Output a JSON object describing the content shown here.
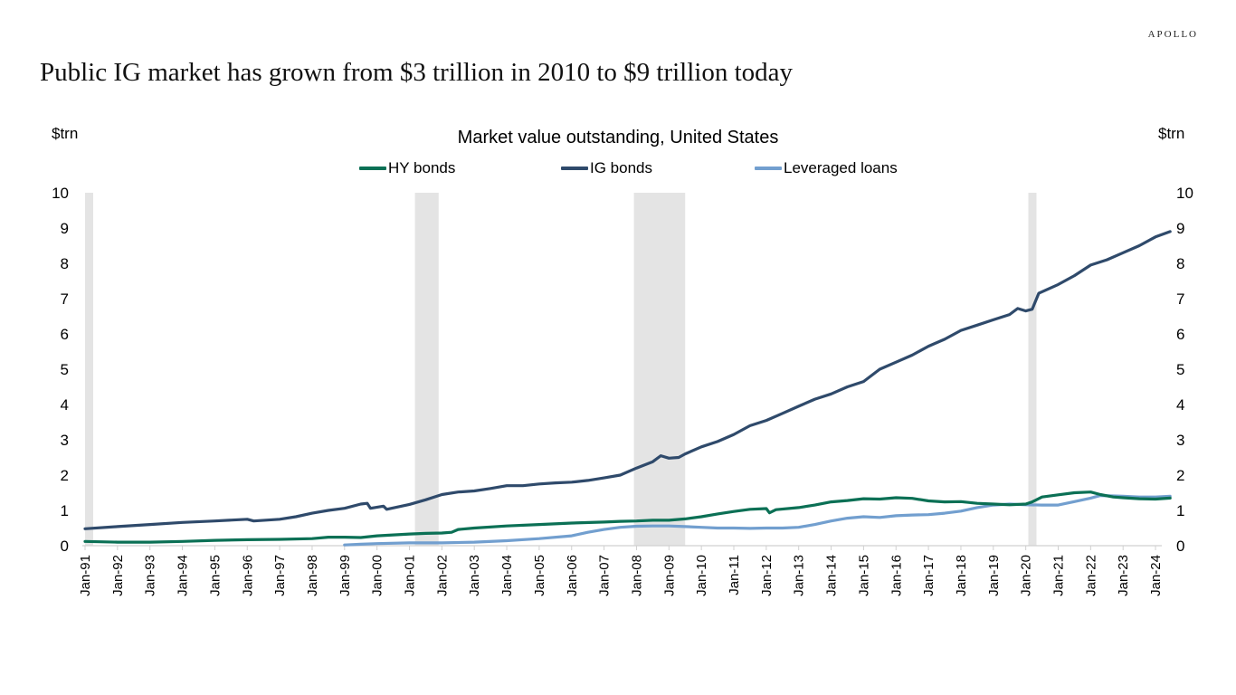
{
  "brand": "APOLLO",
  "headline": "Public IG market has grown from $3 trillion in 2010 to $9 trillion today",
  "chart_data": {
    "type": "line",
    "title": "Market value outstanding, United States",
    "ylabel_left": "$trn",
    "ylabel_right": "$trn",
    "xlabel": "",
    "ylim": [
      0,
      10
    ],
    "yticks": [
      0,
      1,
      2,
      3,
      4,
      5,
      6,
      7,
      8,
      9,
      10
    ],
    "xlim": [
      1991.0,
      2024.45
    ],
    "xticks": [
      {
        "label": "Jan-91",
        "x": 1991
      },
      {
        "label": "Jan-92",
        "x": 1992
      },
      {
        "label": "Jan-93",
        "x": 1993
      },
      {
        "label": "Jan-94",
        "x": 1994
      },
      {
        "label": "Jan-95",
        "x": 1995
      },
      {
        "label": "Jan-96",
        "x": 1996
      },
      {
        "label": "Jan-97",
        "x": 1997
      },
      {
        "label": "Jan-98",
        "x": 1998
      },
      {
        "label": "Jan-99",
        "x": 1999
      },
      {
        "label": "Jan-00",
        "x": 2000
      },
      {
        "label": "Jan-01",
        "x": 2001
      },
      {
        "label": "Jan-02",
        "x": 2002
      },
      {
        "label": "Jan-03",
        "x": 2003
      },
      {
        "label": "Jan-04",
        "x": 2004
      },
      {
        "label": "Jan-05",
        "x": 2005
      },
      {
        "label": "Jan-06",
        "x": 2006
      },
      {
        "label": "Jan-07",
        "x": 2007
      },
      {
        "label": "Jan-08",
        "x": 2008
      },
      {
        "label": "Jan-09",
        "x": 2009
      },
      {
        "label": "Jan-10",
        "x": 2010
      },
      {
        "label": "Jan-11",
        "x": 2011
      },
      {
        "label": "Jan-12",
        "x": 2012
      },
      {
        "label": "Jan-13",
        "x": 2013
      },
      {
        "label": "Jan-14",
        "x": 2014
      },
      {
        "label": "Jan-15",
        "x": 2015
      },
      {
        "label": "Jan-16",
        "x": 2016
      },
      {
        "label": "Jan-17",
        "x": 2017
      },
      {
        "label": "Jan-18",
        "x": 2018
      },
      {
        "label": "Jan-19",
        "x": 2019
      },
      {
        "label": "Jan-20",
        "x": 2020
      },
      {
        "label": "Jan-21",
        "x": 2021
      },
      {
        "label": "Jan-22",
        "x": 2022
      },
      {
        "label": "Jan-23",
        "x": 2023
      },
      {
        "label": "Jan-24",
        "x": 2024
      }
    ],
    "grid": false,
    "legend_position": "top-center",
    "recessions": [
      {
        "start": 1991.0,
        "end": 1991.25
      },
      {
        "start": 2001.17,
        "end": 2001.9
      },
      {
        "start": 2007.92,
        "end": 2009.5
      },
      {
        "start": 2020.08,
        "end": 2020.33
      }
    ],
    "series": [
      {
        "name": "HY bonds",
        "color": "#0b7055",
        "points": [
          [
            1991.0,
            0.12
          ],
          [
            1992.0,
            0.1
          ],
          [
            1993.0,
            0.1
          ],
          [
            1994.0,
            0.12
          ],
          [
            1995.0,
            0.15
          ],
          [
            1996.0,
            0.17
          ],
          [
            1997.0,
            0.18
          ],
          [
            1998.0,
            0.2
          ],
          [
            1998.5,
            0.24
          ],
          [
            1999.0,
            0.24
          ],
          [
            1999.5,
            0.23
          ],
          [
            2000.0,
            0.28
          ],
          [
            2001.0,
            0.33
          ],
          [
            2001.5,
            0.35
          ],
          [
            2002.0,
            0.36
          ],
          [
            2002.3,
            0.38
          ],
          [
            2002.5,
            0.46
          ],
          [
            2003.0,
            0.5
          ],
          [
            2004.0,
            0.56
          ],
          [
            2005.0,
            0.6
          ],
          [
            2006.0,
            0.64
          ],
          [
            2007.0,
            0.67
          ],
          [
            2007.5,
            0.69
          ],
          [
            2008.0,
            0.7
          ],
          [
            2008.5,
            0.72
          ],
          [
            2009.0,
            0.72
          ],
          [
            2009.5,
            0.76
          ],
          [
            2010.0,
            0.82
          ],
          [
            2010.5,
            0.9
          ],
          [
            2011.0,
            0.97
          ],
          [
            2011.5,
            1.03
          ],
          [
            2012.0,
            1.05
          ],
          [
            2012.1,
            0.93
          ],
          [
            2012.3,
            1.02
          ],
          [
            2013.0,
            1.08
          ],
          [
            2013.5,
            1.15
          ],
          [
            2014.0,
            1.24
          ],
          [
            2014.5,
            1.28
          ],
          [
            2015.0,
            1.33
          ],
          [
            2015.5,
            1.32
          ],
          [
            2016.0,
            1.36
          ],
          [
            2016.5,
            1.34
          ],
          [
            2017.0,
            1.27
          ],
          [
            2017.5,
            1.24
          ],
          [
            2018.0,
            1.25
          ],
          [
            2018.5,
            1.2
          ],
          [
            2019.0,
            1.18
          ],
          [
            2019.5,
            1.16
          ],
          [
            2020.0,
            1.18
          ],
          [
            2020.2,
            1.24
          ],
          [
            2020.5,
            1.38
          ],
          [
            2021.0,
            1.44
          ],
          [
            2021.5,
            1.5
          ],
          [
            2022.0,
            1.52
          ],
          [
            2022.3,
            1.45
          ],
          [
            2022.7,
            1.38
          ],
          [
            2023.0,
            1.36
          ],
          [
            2023.5,
            1.33
          ],
          [
            2024.0,
            1.32
          ],
          [
            2024.45,
            1.35
          ]
        ]
      },
      {
        "name": "IG bonds",
        "color": "#2f4a6b",
        "points": [
          [
            1991.0,
            0.48
          ],
          [
            1992.0,
            0.54
          ],
          [
            1993.0,
            0.6
          ],
          [
            1994.0,
            0.66
          ],
          [
            1995.0,
            0.7
          ],
          [
            1996.0,
            0.75
          ],
          [
            1996.2,
            0.7
          ],
          [
            1997.0,
            0.75
          ],
          [
            1997.5,
            0.82
          ],
          [
            1998.0,
            0.92
          ],
          [
            1998.5,
            1.0
          ],
          [
            1999.0,
            1.06
          ],
          [
            1999.5,
            1.18
          ],
          [
            1999.7,
            1.2
          ],
          [
            1999.8,
            1.06
          ],
          [
            2000.2,
            1.12
          ],
          [
            2000.3,
            1.03
          ],
          [
            2001.0,
            1.17
          ],
          [
            2001.5,
            1.3
          ],
          [
            2002.0,
            1.45
          ],
          [
            2002.5,
            1.52
          ],
          [
            2003.0,
            1.55
          ],
          [
            2003.5,
            1.62
          ],
          [
            2004.0,
            1.7
          ],
          [
            2004.5,
            1.7
          ],
          [
            2005.0,
            1.75
          ],
          [
            2005.5,
            1.78
          ],
          [
            2006.0,
            1.8
          ],
          [
            2006.5,
            1.85
          ],
          [
            2007.0,
            1.92
          ],
          [
            2007.5,
            2.0
          ],
          [
            2008.0,
            2.2
          ],
          [
            2008.5,
            2.38
          ],
          [
            2008.75,
            2.55
          ],
          [
            2009.0,
            2.48
          ],
          [
            2009.3,
            2.5
          ],
          [
            2009.5,
            2.6
          ],
          [
            2010.0,
            2.8
          ],
          [
            2010.5,
            2.95
          ],
          [
            2011.0,
            3.15
          ],
          [
            2011.5,
            3.4
          ],
          [
            2012.0,
            3.55
          ],
          [
            2012.5,
            3.75
          ],
          [
            2013.0,
            3.95
          ],
          [
            2013.5,
            4.15
          ],
          [
            2014.0,
            4.3
          ],
          [
            2014.5,
            4.5
          ],
          [
            2015.0,
            4.65
          ],
          [
            2015.5,
            5.0
          ],
          [
            2016.0,
            5.2
          ],
          [
            2016.5,
            5.4
          ],
          [
            2017.0,
            5.65
          ],
          [
            2017.5,
            5.85
          ],
          [
            2018.0,
            6.1
          ],
          [
            2018.5,
            6.25
          ],
          [
            2019.0,
            6.4
          ],
          [
            2019.5,
            6.55
          ],
          [
            2019.75,
            6.72
          ],
          [
            2020.0,
            6.65
          ],
          [
            2020.2,
            6.7
          ],
          [
            2020.4,
            7.15
          ],
          [
            2021.0,
            7.4
          ],
          [
            2021.5,
            7.65
          ],
          [
            2022.0,
            7.95
          ],
          [
            2022.5,
            8.1
          ],
          [
            2023.0,
            8.3
          ],
          [
            2023.5,
            8.5
          ],
          [
            2024.0,
            8.75
          ],
          [
            2024.45,
            8.9
          ]
        ]
      },
      {
        "name": "Leveraged loans",
        "color": "#729fcf",
        "points": [
          [
            1999.0,
            0.02
          ],
          [
            1999.5,
            0.04
          ],
          [
            2000.0,
            0.06
          ],
          [
            2001.0,
            0.08
          ],
          [
            2002.0,
            0.08
          ],
          [
            2003.0,
            0.1
          ],
          [
            2004.0,
            0.14
          ],
          [
            2005.0,
            0.2
          ],
          [
            2006.0,
            0.28
          ],
          [
            2006.5,
            0.38
          ],
          [
            2007.0,
            0.46
          ],
          [
            2007.5,
            0.52
          ],
          [
            2008.0,
            0.55
          ],
          [
            2008.5,
            0.56
          ],
          [
            2009.0,
            0.56
          ],
          [
            2009.5,
            0.54
          ],
          [
            2010.0,
            0.52
          ],
          [
            2010.5,
            0.5
          ],
          [
            2011.0,
            0.5
          ],
          [
            2011.5,
            0.49
          ],
          [
            2012.0,
            0.5
          ],
          [
            2012.5,
            0.5
          ],
          [
            2013.0,
            0.52
          ],
          [
            2013.5,
            0.6
          ],
          [
            2014.0,
            0.7
          ],
          [
            2014.5,
            0.78
          ],
          [
            2015.0,
            0.82
          ],
          [
            2015.5,
            0.8
          ],
          [
            2016.0,
            0.85
          ],
          [
            2016.5,
            0.87
          ],
          [
            2017.0,
            0.88
          ],
          [
            2017.5,
            0.92
          ],
          [
            2018.0,
            0.98
          ],
          [
            2018.5,
            1.08
          ],
          [
            2019.0,
            1.15
          ],
          [
            2019.5,
            1.18
          ],
          [
            2020.0,
            1.16
          ],
          [
            2020.5,
            1.15
          ],
          [
            2021.0,
            1.15
          ],
          [
            2021.5,
            1.25
          ],
          [
            2022.0,
            1.35
          ],
          [
            2022.3,
            1.42
          ],
          [
            2022.7,
            1.41
          ],
          [
            2023.0,
            1.4
          ],
          [
            2023.5,
            1.38
          ],
          [
            2024.0,
            1.38
          ],
          [
            2024.45,
            1.4
          ]
        ]
      }
    ]
  }
}
